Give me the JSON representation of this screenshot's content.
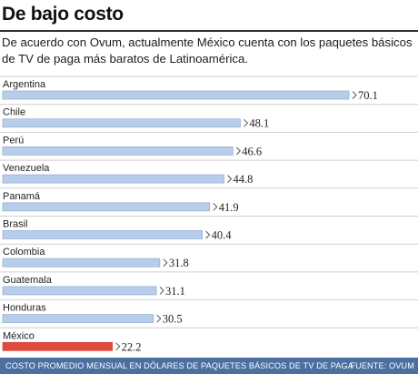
{
  "chart_data": {
    "type": "bar",
    "orientation": "horizontal",
    "title": "De bajo costo",
    "subtitle": "De acuerdo con Ovum, actualmente México cuenta con los paquetes básicos de TV de paga más baratos de Latinoamérica.",
    "categories": [
      "Argentina",
      "Chile",
      "Perú",
      "Venezuela",
      "Panamá",
      "Brasil",
      "Colombia",
      "Guatemala",
      "Honduras",
      "México"
    ],
    "values": [
      70.1,
      48.1,
      46.6,
      44.8,
      41.9,
      40.4,
      31.8,
      31.1,
      30.5,
      22.2
    ],
    "value_labels": [
      "70.1",
      "48.1",
      "46.6",
      "44.8",
      "41.9",
      "40.4",
      "31.8",
      "31.1",
      "30.5",
      "22.2"
    ],
    "xlim": [
      0,
      70.1
    ],
    "highlight_category": "México",
    "colors": {
      "bar": "#b7cdea",
      "bar_stroke": "#97b3d8",
      "highlight": "#e0493d",
      "divider": "#cfcfcf"
    },
    "source_note": "COSTO PROMEDIO MENSUAL EN DÓLARES DE PAQUETES BÁSICOS DE TV DE PAGA",
    "source": "FUENTE: OVUM"
  }
}
